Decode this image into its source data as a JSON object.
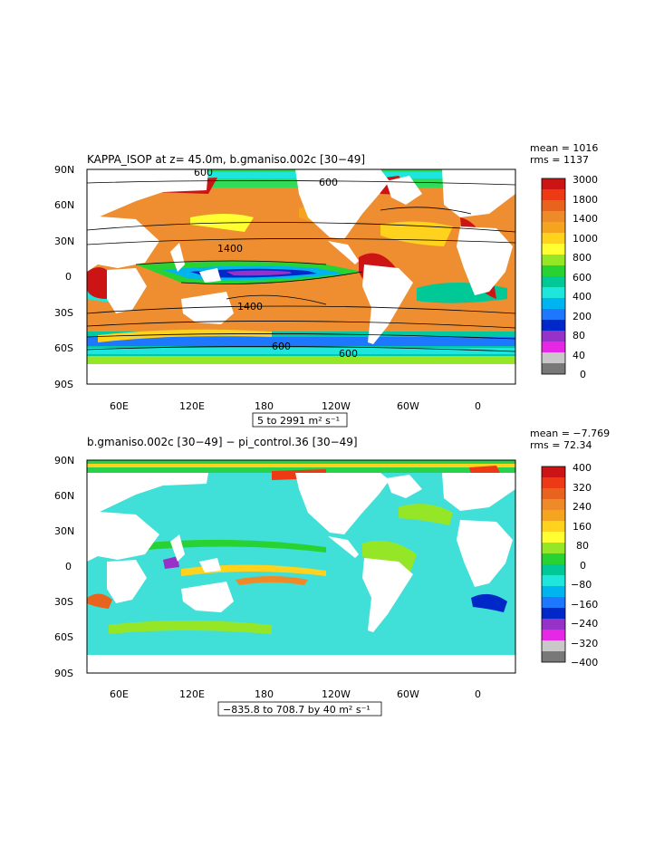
{
  "panels": [
    {
      "title": "KAPPA_ISOP at z=  45.0m, b.gmaniso.002c [30−49]",
      "mean_label": "mean = 1016",
      "rms_label": "rms = 1137",
      "range_label": "5 to 2991 m² s⁻¹",
      "y_ticks": [
        "90N",
        "60N",
        "30N",
        "0",
        "30S",
        "60S",
        "90S"
      ],
      "x_ticks": [
        "60E",
        "120E",
        "180",
        "120W",
        "60W",
        "0"
      ],
      "colorbar_labels": [
        "3000",
        "1800",
        "1400",
        "1000",
        "800",
        "600",
        "400",
        "200",
        "80",
        "40",
        "0"
      ],
      "colorbar_colors": [
        "#cc1414",
        "#ee3a14",
        "#e8641e",
        "#ee8a28",
        "#f4a41e",
        "#ffd21e",
        "#ffff32",
        "#96e628",
        "#28d232",
        "#00c896",
        "#1ee6dc",
        "#00b4f0",
        "#1e78ff",
        "#0028c8",
        "#9632c8",
        "#e628e6",
        "#c8c8c8",
        "#787878"
      ],
      "contour_labels": [
        "600",
        "600",
        "1400",
        "1400",
        "600",
        "600"
      ],
      "ocean_fill": "#ee8e30"
    },
    {
      "title": "b.gmaniso.002c [30−49] − pi_control.36 [30−49]",
      "mean_label": "mean = −7.769",
      "rms_label": "rms = 72.34",
      "range_label": "−835.8 to 708.7 by 40 m² s⁻¹",
      "y_ticks": [
        "90N",
        "60N",
        "30N",
        "0",
        "30S",
        "60S",
        "90S"
      ],
      "x_ticks": [
        "60E",
        "120E",
        "180",
        "120W",
        "60W",
        "0"
      ],
      "colorbar_labels": [
        "400",
        "320",
        "240",
        "160",
        "80",
        "0",
        "−80",
        "−160",
        "−240",
        "−320",
        "−400"
      ],
      "colorbar_colors": [
        "#cc1414",
        "#ee3a14",
        "#e8641e",
        "#ee8a28",
        "#f4a41e",
        "#ffd21e",
        "#ffff32",
        "#96e628",
        "#28d232",
        "#00c896",
        "#1ee6dc",
        "#00b4f0",
        "#1e78ff",
        "#0028c8",
        "#9632c8",
        "#e628e6",
        "#c8c8c8",
        "#787878"
      ],
      "ocean_fill": "#40e0d8"
    }
  ]
}
